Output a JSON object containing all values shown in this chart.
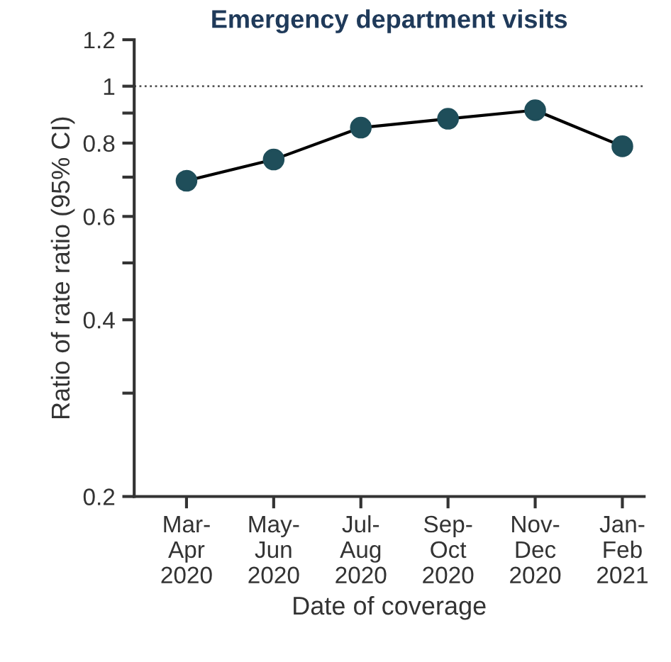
{
  "chart_data": {
    "type": "line",
    "title": "Emergency department visits",
    "xlabel": "Date of coverage",
    "ylabel": "Ratio of rate ratio (95% CI)",
    "categories": [
      "Mar-\nApr\n2020",
      "May-\nJun\n2020",
      "Jul-\nAug\n2020",
      "Sep-\nOct\n2020",
      "Nov-\nDec\n2020",
      "Jan-\nFeb\n2021"
    ],
    "series": [
      {
        "color": "#1f4e5a",
        "values": [
          0.69,
          0.75,
          0.85,
          0.88,
          0.91,
          0.79
        ]
      }
    ],
    "log": "y",
    "ylim": [
      0.2,
      1.2
    ],
    "yticks": [
      0.2,
      {
        "value": 0.3,
        "label": null
      },
      0.4,
      {
        "value": 0.5,
        "label": null
      },
      0.6,
      {
        "value": 0.7,
        "label": null
      },
      0.8,
      {
        "value": 0.9,
        "label": null
      },
      1,
      1.2
    ],
    "ref_lines": [
      {
        "axis": "y",
        "value": 1,
        "color": "#555555",
        "line_style": "dotted"
      }
    ],
    "marker": "circle",
    "line_style": "solid",
    "grid": false,
    "legend": false
  }
}
